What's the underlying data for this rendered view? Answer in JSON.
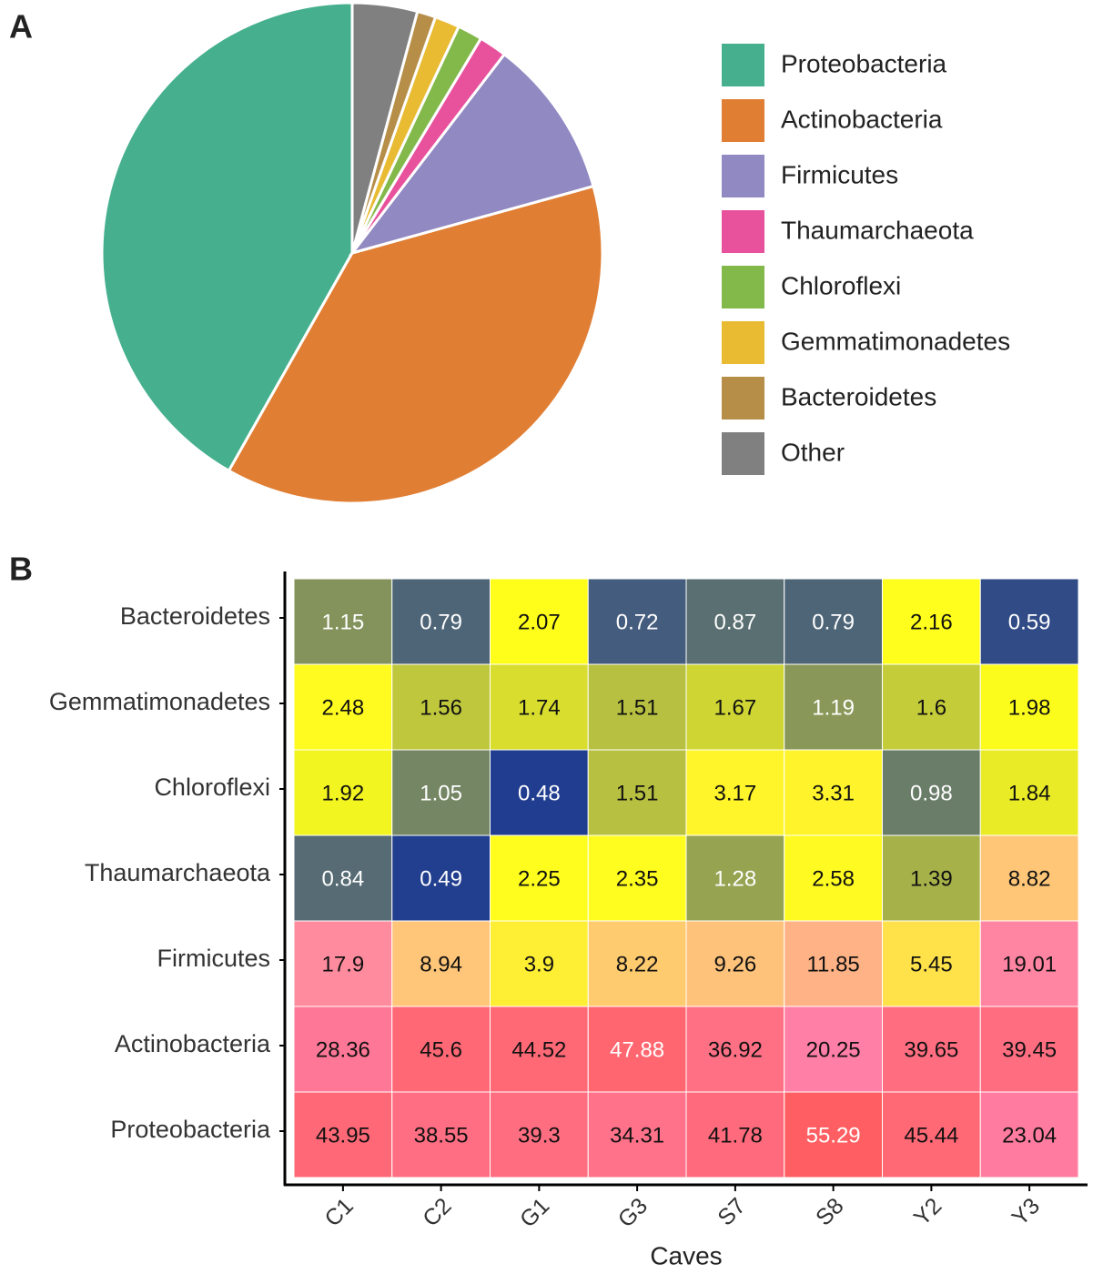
{
  "chart_data": [
    {
      "type": "pie",
      "label": "A",
      "categories": [
        "Proteobacteria",
        "Actinobacteria",
        "Firmicutes",
        "Thaumarchaeota",
        "Chloroflexi",
        "Gemmatimonadetes",
        "Bacteroidetes",
        "Other"
      ],
      "values": [
        41.8,
        37.5,
        10.3,
        1.8,
        1.6,
        1.6,
        1.2,
        4.2
      ],
      "colors": [
        "#46b08e",
        "#e07e34",
        "#9189c2",
        "#e8529d",
        "#83b84a",
        "#e8bb33",
        "#b68e48",
        "#808080"
      ],
      "direction": "counterclockwise",
      "legend": "right"
    },
    {
      "type": "heatmap",
      "label": "B",
      "xlabel": "Caves",
      "x": [
        "C1",
        "C2",
        "G1",
        "G3",
        "S7",
        "S8",
        "Y2",
        "Y3"
      ],
      "y": [
        "Bacteroidetes",
        "Gemmatimonadetes",
        "Chloroflexi",
        "Thaumarchaeota",
        "Firmicutes",
        "Actinobacteria",
        "Proteobacteria"
      ],
      "values": [
        [
          1.15,
          0.79,
          2.07,
          0.72,
          0.87,
          0.79,
          2.16,
          0.59
        ],
        [
          2.48,
          1.56,
          1.74,
          1.51,
          1.67,
          1.19,
          1.6,
          1.98
        ],
        [
          1.92,
          1.05,
          0.48,
          1.51,
          3.17,
          3.31,
          0.98,
          1.84
        ],
        [
          0.84,
          0.49,
          2.25,
          2.35,
          1.28,
          2.58,
          1.39,
          8.82
        ],
        [
          17.9,
          8.94,
          3.9,
          8.22,
          9.26,
          11.85,
          5.45,
          19.01
        ],
        [
          28.36,
          45.6,
          44.52,
          47.88,
          36.92,
          20.25,
          39.65,
          39.45
        ],
        [
          43.95,
          38.55,
          39.3,
          34.31,
          41.78,
          55.29,
          45.44,
          23.04
        ]
      ],
      "colorscale": [
        [
          0.48,
          "#213d8f"
        ],
        [
          2,
          "#ffff1a"
        ],
        [
          9,
          "#ffc47a"
        ],
        [
          20,
          "#ff7fa6"
        ],
        [
          55,
          "#ff5f62"
        ]
      ]
    }
  ]
}
